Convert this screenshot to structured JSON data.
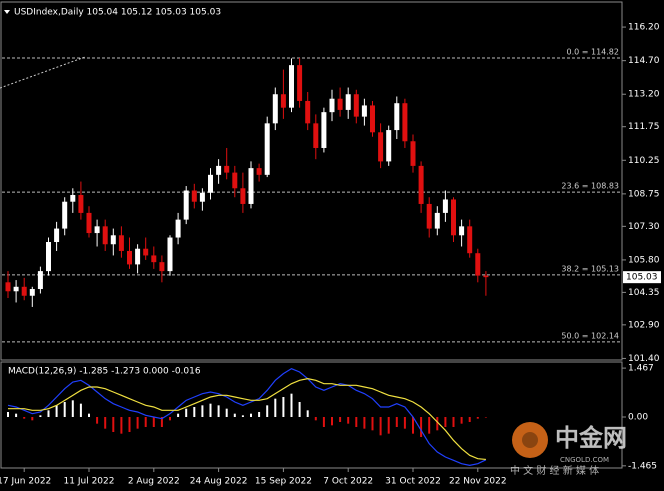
{
  "chart_data": [
    {
      "type": "candlestick",
      "header": "USDIndex,Daily  105.04 105.12 105.03 105.03",
      "up_color": "#ffffff",
      "down_color": "#e01010",
      "ylim": [
        101.33,
        117.32
      ],
      "yticks": [
        {
          "value": 116.2,
          "label": "116.20"
        },
        {
          "value": 114.7,
          "label": "114.70"
        },
        {
          "value": 113.2,
          "label": "113.20"
        },
        111.75,
        110.25,
        108.75,
        {
          "value": 107.3,
          "label": "107.30"
        },
        {
          "value": 105.8,
          "label": "105.80"
        },
        104.35,
        {
          "value": 102.9,
          "label": "102.90"
        },
        {
          "value": 101.4,
          "label": "101.40"
        }
      ],
      "xticks": [
        {
          "value": 2,
          "label": "17 Jun 2022"
        },
        {
          "value": 10,
          "label": "11 Jul 2022"
        },
        {
          "value": 18,
          "label": "2 Aug 2022"
        },
        {
          "value": 26,
          "label": "24 Aug 2022"
        },
        {
          "value": 34,
          "label": "15 Sep 2022"
        },
        {
          "value": 42,
          "label": "7 Oct 2022"
        },
        {
          "value": 50,
          "label": "31 Oct 2022"
        },
        {
          "value": 58,
          "label": "22 Nov 2022"
        }
      ],
      "fib_levels": [
        {
          "value": 114.82,
          "label": "0.0 = 114.82"
        },
        {
          "value": 108.83,
          "label": "23.6 = 108.83"
        },
        {
          "value": 105.13,
          "label": "38.2 = 105.13"
        },
        {
          "value": 102.14,
          "label": "50.0 = 102.14"
        }
      ],
      "current_price": 105.03,
      "candles": [
        [
          104.8,
          105.3,
          104.1,
          104.4
        ],
        [
          104.4,
          104.9,
          103.9,
          104.6
        ],
        [
          104.6,
          105.0,
          104.0,
          104.2
        ],
        [
          104.2,
          104.6,
          103.7,
          104.5
        ],
        [
          104.5,
          105.5,
          104.3,
          105.3
        ],
        [
          105.3,
          106.8,
          105.1,
          106.6
        ],
        [
          106.6,
          107.5,
          106.2,
          107.2
        ],
        [
          107.2,
          108.6,
          106.9,
          108.4
        ],
        [
          108.4,
          109.0,
          107.9,
          108.7
        ],
        [
          108.7,
          109.3,
          107.6,
          107.9
        ],
        [
          107.9,
          108.2,
          106.8,
          107.0
        ],
        [
          107.0,
          107.6,
          106.4,
          107.3
        ],
        [
          107.3,
          107.6,
          106.2,
          106.5
        ],
        [
          106.5,
          107.2,
          106.0,
          106.9
        ],
        [
          106.9,
          107.3,
          105.9,
          106.2
        ],
        [
          106.2,
          106.8,
          105.4,
          105.6
        ],
        [
          105.6,
          106.5,
          105.2,
          106.3
        ],
        [
          106.3,
          106.8,
          105.8,
          106.0
        ],
        [
          106.0,
          106.4,
          105.4,
          105.7
        ],
        [
          105.7,
          106.0,
          104.8,
          105.3
        ],
        [
          105.3,
          106.9,
          105.1,
          106.8
        ],
        [
          106.8,
          107.9,
          106.5,
          107.6
        ],
        [
          107.6,
          109.1,
          107.4,
          108.9
        ],
        [
          108.9,
          109.2,
          108.1,
          108.4
        ],
        [
          108.4,
          109.0,
          108.0,
          108.8
        ],
        [
          108.8,
          109.9,
          108.5,
          109.6
        ],
        [
          109.6,
          110.3,
          109.2,
          110.0
        ],
        [
          110.0,
          110.8,
          109.4,
          109.7
        ],
        [
          109.7,
          110.0,
          108.6,
          109.0
        ],
        [
          109.0,
          109.7,
          107.9,
          108.3
        ],
        [
          108.3,
          110.2,
          108.1,
          109.9
        ],
        [
          109.9,
          110.1,
          109.3,
          109.6
        ],
        [
          109.6,
          112.2,
          109.5,
          111.9
        ],
        [
          111.9,
          113.5,
          111.6,
          113.2
        ],
        [
          113.2,
          114.3,
          112.1,
          112.6
        ],
        [
          112.6,
          114.8,
          112.4,
          114.5
        ],
        [
          114.5,
          114.82,
          112.6,
          112.9
        ],
        [
          112.9,
          113.3,
          111.6,
          111.9
        ],
        [
          111.9,
          112.3,
          110.3,
          110.8
        ],
        [
          110.8,
          112.6,
          110.6,
          112.4
        ],
        [
          112.4,
          113.4,
          112.0,
          113.0
        ],
        [
          113.0,
          113.5,
          112.2,
          112.5
        ],
        [
          112.5,
          113.5,
          112.1,
          113.2
        ],
        [
          113.2,
          113.4,
          111.9,
          112.2
        ],
        [
          112.2,
          113.0,
          111.8,
          112.7
        ],
        [
          112.7,
          112.9,
          111.3,
          111.5
        ],
        [
          111.5,
          111.9,
          109.9,
          110.2
        ],
        [
          110.2,
          111.8,
          110.0,
          111.6
        ],
        [
          111.6,
          113.1,
          111.2,
          112.8
        ],
        [
          112.8,
          113.0,
          110.8,
          111.1
        ],
        [
          111.1,
          111.4,
          109.7,
          110.0
        ],
        [
          110.0,
          110.2,
          107.9,
          108.3
        ],
        [
          108.3,
          108.6,
          106.8,
          107.2
        ],
        [
          107.2,
          108.2,
          106.9,
          107.9
        ],
        [
          107.9,
          108.9,
          107.5,
          108.5
        ],
        [
          108.5,
          108.6,
          106.6,
          106.9
        ],
        [
          106.9,
          107.6,
          106.4,
          107.3
        ],
        [
          107.3,
          107.6,
          105.9,
          106.1
        ],
        [
          106.1,
          106.3,
          104.8,
          105.1
        ],
        [
          105.1,
          105.3,
          104.2,
          105.03
        ]
      ]
    },
    {
      "type": "macd",
      "header": "MACD(12,26,9) -1.285 -1.273 0.000 -0.016",
      "ylim": [
        -1.53,
        1.65
      ],
      "yticks": [
        1.467,
        {
          "value": 0,
          "label": "0.00"
        },
        -1.465
      ],
      "histogram_color": "#ffffff",
      "histogram_negative_color": "#e01010",
      "macd_color": "#2040ff",
      "signal_color": "#f0e040",
      "histogram": [
        0.15,
        0.1,
        -0.05,
        -0.1,
        0.05,
        0.2,
        0.35,
        0.45,
        0.5,
        0.4,
        0.1,
        -0.2,
        -0.35,
        -0.45,
        -0.5,
        -0.45,
        -0.35,
        -0.3,
        -0.3,
        -0.3,
        -0.1,
        0.1,
        0.25,
        0.3,
        0.35,
        0.4,
        0.35,
        0.25,
        0.1,
        0.05,
        0.1,
        0.15,
        0.35,
        0.55,
        0.6,
        0.7,
        0.45,
        0.2,
        -0.1,
        -0.3,
        -0.25,
        -0.15,
        -0.2,
        -0.3,
        -0.35,
        -0.4,
        -0.55,
        -0.5,
        -0.3,
        -0.35,
        -0.5,
        -0.6,
        -0.5,
        -0.4,
        -0.3,
        -0.3,
        -0.2,
        -0.15,
        -0.05,
        -0.016
      ],
      "macd": [
        0.35,
        0.3,
        0.2,
        0.1,
        0.15,
        0.35,
        0.6,
        0.85,
        1.05,
        1.1,
        0.95,
        0.75,
        0.55,
        0.4,
        0.3,
        0.2,
        0.15,
        0.05,
        0.0,
        -0.05,
        0.1,
        0.3,
        0.5,
        0.6,
        0.7,
        0.75,
        0.7,
        0.6,
        0.45,
        0.35,
        0.45,
        0.55,
        0.8,
        1.1,
        1.3,
        1.45,
        1.35,
        1.15,
        0.9,
        0.8,
        0.9,
        1.0,
        0.95,
        0.8,
        0.7,
        0.55,
        0.3,
        0.3,
        0.4,
        0.3,
        0.0,
        -0.4,
        -0.8,
        -1.05,
        -1.2,
        -1.3,
        -1.4,
        -1.45,
        -1.4,
        -1.285
      ],
      "signal": [
        0.25,
        0.25,
        0.25,
        0.2,
        0.2,
        0.25,
        0.35,
        0.5,
        0.65,
        0.8,
        0.9,
        0.9,
        0.85,
        0.75,
        0.65,
        0.55,
        0.45,
        0.35,
        0.3,
        0.2,
        0.2,
        0.2,
        0.3,
        0.4,
        0.5,
        0.6,
        0.65,
        0.65,
        0.6,
        0.55,
        0.5,
        0.5,
        0.55,
        0.7,
        0.85,
        1.0,
        1.1,
        1.15,
        1.1,
        1.0,
        1.0,
        0.95,
        0.95,
        0.95,
        0.9,
        0.85,
        0.75,
        0.65,
        0.6,
        0.55,
        0.45,
        0.3,
        0.1,
        -0.15,
        -0.4,
        -0.7,
        -0.95,
        -1.15,
        -1.25,
        -1.273
      ]
    }
  ],
  "watermark": {
    "brand": "中金网",
    "site": "CNGOLD.COM",
    "slogan": "中 文 财 经 新 媒 体"
  }
}
